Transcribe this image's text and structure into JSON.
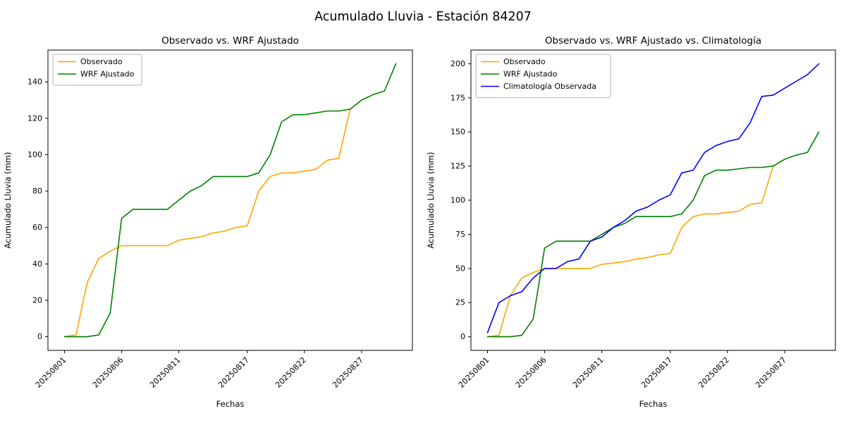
{
  "figure": {
    "suptitle": "Acumulado Lluvia - Estación 84207"
  },
  "chart_data": [
    {
      "type": "line",
      "title": "Observado vs. WRF Ajustado",
      "xlabel": "Fechas",
      "ylabel": "Acumulado Lluvia (mm)",
      "legend_position": "upper left",
      "grid": false,
      "x": [
        "20250801",
        "20250802",
        "20250803",
        "20250804",
        "20250805",
        "20250806",
        "20250807",
        "20250808",
        "20250809",
        "20250810",
        "20250811",
        "20250812",
        "20250813",
        "20250814",
        "20250815",
        "20250816",
        "20250817",
        "20250818",
        "20250819",
        "20250820",
        "20250821",
        "20250822",
        "20250823",
        "20250824",
        "20250825",
        "20250826",
        "20250827",
        "20250828",
        "20250829",
        "20250830"
      ],
      "xlim": [
        -1.45,
        30.45
      ],
      "ylim": [
        -7.5,
        157.5
      ],
      "yticks": [
        0,
        20,
        40,
        60,
        80,
        100,
        120,
        140
      ],
      "xticks": [
        {
          "i": 0,
          "label": "20250801"
        },
        {
          "i": 5,
          "label": "20250806"
        },
        {
          "i": 10,
          "label": "20250811"
        },
        {
          "i": 16,
          "label": "20250817"
        },
        {
          "i": 21,
          "label": "20250822"
        },
        {
          "i": 26,
          "label": "20250827"
        }
      ],
      "series": [
        {
          "name": "Observado",
          "color": "#FFA500",
          "values": [
            0,
            1,
            30,
            43,
            47,
            50,
            50,
            50,
            50,
            50,
            53,
            54,
            55,
            57,
            58,
            60,
            61,
            80,
            88,
            90,
            90,
            91,
            92,
            97,
            98,
            125,
            130
          ]
        },
        {
          "name": "WRF Ajustado",
          "color": "#008000",
          "values": [
            0,
            0,
            0,
            1,
            13,
            65,
            70,
            70,
            70,
            70,
            75,
            80,
            83,
            88,
            88,
            88,
            88,
            90,
            100,
            118,
            122,
            122,
            123,
            124,
            124,
            125,
            130,
            133,
            135,
            150
          ]
        }
      ]
    },
    {
      "type": "line",
      "title": "Observado vs. WRF Ajustado vs. Climatología",
      "xlabel": "Fechas",
      "ylabel": "Acumulado Lluvia (mm)",
      "legend_position": "upper left",
      "grid": false,
      "x": [
        "20250801",
        "20250802",
        "20250803",
        "20250804",
        "20250805",
        "20250806",
        "20250807",
        "20250808",
        "20250809",
        "20250810",
        "20250811",
        "20250812",
        "20250813",
        "20250814",
        "20250815",
        "20250816",
        "20250817",
        "20250818",
        "20250819",
        "20250820",
        "20250821",
        "20250822",
        "20250823",
        "20250824",
        "20250825",
        "20250826",
        "20250827",
        "20250828",
        "20250829",
        "20250830"
      ],
      "xlim": [
        -1.45,
        30.45
      ],
      "ylim": [
        -10,
        210
      ],
      "yticks": [
        0,
        25,
        50,
        75,
        100,
        125,
        150,
        175,
        200
      ],
      "xticks": [
        {
          "i": 0,
          "label": "20250801"
        },
        {
          "i": 5,
          "label": "20250806"
        },
        {
          "i": 10,
          "label": "20250811"
        },
        {
          "i": 16,
          "label": "20250817"
        },
        {
          "i": 21,
          "label": "20250822"
        },
        {
          "i": 26,
          "label": "20250827"
        }
      ],
      "series": [
        {
          "name": "Observado",
          "color": "#FFA500",
          "values": [
            0,
            1,
            30,
            43,
            47,
            50,
            50,
            50,
            50,
            50,
            53,
            54,
            55,
            57,
            58,
            60,
            61,
            80,
            88,
            90,
            90,
            91,
            92,
            97,
            98,
            125,
            130
          ]
        },
        {
          "name": "WRF Ajustado",
          "color": "#008000",
          "values": [
            0,
            0,
            0,
            1,
            13,
            65,
            70,
            70,
            70,
            70,
            75,
            80,
            83,
            88,
            88,
            88,
            88,
            90,
            100,
            118,
            122,
            122,
            123,
            124,
            124,
            125,
            130,
            133,
            135,
            150
          ]
        },
        {
          "name": "Climatología Observada",
          "color": "#0000FF",
          "values": [
            3,
            25,
            30,
            33,
            43,
            50,
            50,
            55,
            57,
            70,
            73,
            80,
            85,
            92,
            95,
            100,
            104,
            120,
            122,
            135,
            140,
            143,
            145,
            157,
            176,
            177,
            182,
            187,
            192,
            200
          ]
        }
      ]
    }
  ]
}
